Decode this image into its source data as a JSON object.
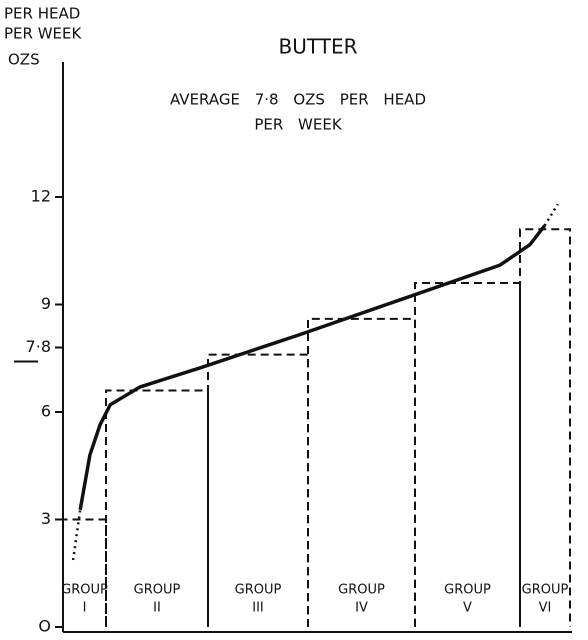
{
  "chart_data": {
    "type": "bar",
    "title": "BUTTER",
    "y_label_lines": [
      "PER HEAD",
      "PER WEEK"
    ],
    "y_unit": "OZS",
    "annotation_lines": [
      "AVERAGE 7·8 OZS PER HEAD",
      "PER WEEK"
    ],
    "categories": [
      [
        "GROUP",
        "I"
      ],
      [
        "GROUP",
        "II"
      ],
      [
        "GROUP",
        "III"
      ],
      [
        "GROUP",
        "IV"
      ],
      [
        "GROUP",
        "V"
      ],
      [
        "GROUP",
        "VI"
      ]
    ],
    "values": [
      3.0,
      6.6,
      7.6,
      8.6,
      9.6,
      11.1
    ],
    "color": "#111111",
    "ylim": [
      0,
      12.5
    ],
    "yticks": [
      {
        "value": 0,
        "label": "O"
      },
      3,
      6,
      {
        "value": 7.8,
        "label": "7·8"
      },
      9,
      12
    ],
    "curve": {
      "x": [
        2,
        3.4,
        5.3,
        7.3,
        9.3,
        15.2,
        27,
        46.7,
        66.5,
        86.2,
        92.1,
        95,
        97.6
      ],
      "values": [
        1.87,
        3.27,
        4.8,
        5.64,
        6.2,
        6.7,
        7.23,
        8.16,
        9.13,
        10.1,
        10.67,
        11.2,
        11.8
      ],
      "xlim": [
        0,
        100
      ],
      "color": "#111111"
    }
  }
}
